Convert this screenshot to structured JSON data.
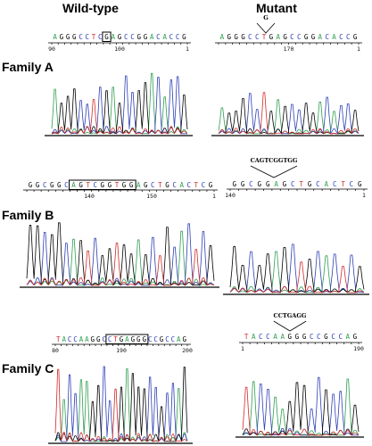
{
  "headers": {
    "wild_type": "Wild-type",
    "mutant": "Mutant"
  },
  "families": [
    {
      "label": "Family A",
      "wt": {
        "sequence": "AGGGCCTCGAGCCGGACACCG",
        "ruler_labels": [
          "90",
          "100",
          "1"
        ],
        "boxed": [
          8,
          8
        ]
      },
      "mut": {
        "sequence": "AGGGCCTGAGCCGGACACCG",
        "ruler_labels": [
          "",
          "170",
          "1"
        ],
        "insertion_label": "G"
      }
    },
    {
      "label": "Family B",
      "wt": {
        "sequence": "GGCGGCAGTCGGTGGAGCTGCACTCG",
        "ruler_labels": [
          "",
          "140",
          "150",
          "1"
        ],
        "boxed": [
          6,
          14
        ]
      },
      "mut": {
        "sequence": "GGCGGAGCTGCACTCG",
        "ruler_labels": [
          "140",
          "1"
        ],
        "insertion_label": "CAGTCGGTGG"
      }
    },
    {
      "label": "Family C",
      "wt": {
        "sequence": "TACCAAGGCCTGAGGGCCGCCAG",
        "ruler_labels": [
          "80",
          "190",
          "200"
        ],
        "boxed": [
          9,
          15
        ]
      },
      "mut": {
        "sequence": "TACCAAGGGCCGCCAG",
        "ruler_labels": [
          "1",
          "190"
        ],
        "insertion_label": "CCTGAGG"
      }
    }
  ],
  "colors": {
    "A": "#2e9e4f",
    "C": "#2c3fb5",
    "G": "#000000",
    "T": "#d12a2a"
  }
}
